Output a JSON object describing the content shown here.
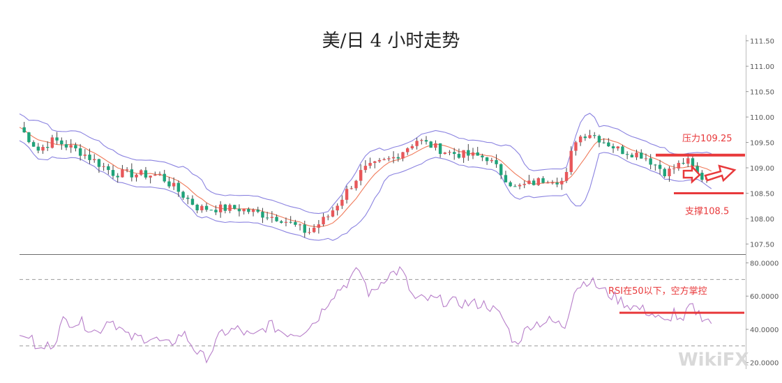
{
  "chart_data": [
    {
      "type": "candlestick",
      "panel": "price",
      "title": "美/日 4 小时走势",
      "y_ticks": [
        "107.50",
        "108.00",
        "108.50",
        "109.00",
        "109.50",
        "110.00",
        "110.50",
        "111.00",
        "111.50"
      ],
      "ylim": [
        107.3,
        111.55
      ],
      "grid": false,
      "colors": {
        "up": "#e8575a",
        "down": "#1fa37a",
        "bollinger": "#8a82e0",
        "mid": "#f07a5a",
        "annotation": "#e8393b"
      },
      "price_path": [
        {
          "x": 0,
          "y": 109.8
        },
        {
          "x": 12,
          "y": 109.35
        },
        {
          "x": 22,
          "y": 109.55
        },
        {
          "x": 40,
          "y": 109.3
        },
        {
          "x": 60,
          "y": 108.9
        },
        {
          "x": 90,
          "y": 108.85
        },
        {
          "x": 115,
          "y": 108.2
        },
        {
          "x": 140,
          "y": 108.2
        },
        {
          "x": 168,
          "y": 108.0
        },
        {
          "x": 185,
          "y": 107.72
        },
        {
          "x": 198,
          "y": 108.05
        },
        {
          "x": 220,
          "y": 108.95
        },
        {
          "x": 240,
          "y": 109.2
        },
        {
          "x": 255,
          "y": 109.55
        },
        {
          "x": 275,
          "y": 109.3
        },
        {
          "x": 300,
          "y": 109.2
        },
        {
          "x": 318,
          "y": 108.6
        },
        {
          "x": 340,
          "y": 108.8
        },
        {
          "x": 350,
          "y": 108.72
        },
        {
          "x": 356,
          "y": 109.55
        },
        {
          "x": 365,
          "y": 109.7
        },
        {
          "x": 385,
          "y": 109.35
        },
        {
          "x": 400,
          "y": 109.25
        },
        {
          "x": 415,
          "y": 108.9
        },
        {
          "x": 428,
          "y": 109.15
        },
        {
          "x": 437,
          "y": 108.8
        },
        {
          "x": 445,
          "y": 108.85
        }
      ],
      "annotations": [
        {
          "text": "压力109.25",
          "level": 109.25
        },
        {
          "text": "支撑108.5",
          "level": 108.5
        }
      ]
    },
    {
      "type": "line",
      "panel": "rsi",
      "y_ticks": [
        "20.0000",
        "40.0000",
        "60.0000",
        "80.0000"
      ],
      "ylim": [
        19,
        84
      ],
      "reference_lines": [
        30,
        70
      ],
      "rsi_path": [
        {
          "x": 0,
          "y": 33
        },
        {
          "x": 5,
          "y": 38
        },
        {
          "x": 12,
          "y": 27
        },
        {
          "x": 22,
          "y": 32
        },
        {
          "x": 28,
          "y": 45
        },
        {
          "x": 40,
          "y": 44
        },
        {
          "x": 50,
          "y": 38
        },
        {
          "x": 58,
          "y": 47
        },
        {
          "x": 70,
          "y": 35
        },
        {
          "x": 85,
          "y": 35
        },
        {
          "x": 95,
          "y": 30
        },
        {
          "x": 105,
          "y": 38
        },
        {
          "x": 115,
          "y": 25
        },
        {
          "x": 120,
          "y": 22
        },
        {
          "x": 130,
          "y": 38
        },
        {
          "x": 140,
          "y": 40
        },
        {
          "x": 150,
          "y": 35
        },
        {
          "x": 160,
          "y": 43
        },
        {
          "x": 170,
          "y": 38
        },
        {
          "x": 180,
          "y": 38
        },
        {
          "x": 190,
          "y": 45
        },
        {
          "x": 200,
          "y": 60
        },
        {
          "x": 210,
          "y": 68
        },
        {
          "x": 218,
          "y": 76
        },
        {
          "x": 225,
          "y": 60
        },
        {
          "x": 235,
          "y": 72
        },
        {
          "x": 245,
          "y": 76
        },
        {
          "x": 253,
          "y": 58
        },
        {
          "x": 265,
          "y": 58
        },
        {
          "x": 280,
          "y": 56
        },
        {
          "x": 300,
          "y": 55
        },
        {
          "x": 310,
          "y": 47
        },
        {
          "x": 318,
          "y": 31
        },
        {
          "x": 328,
          "y": 43
        },
        {
          "x": 340,
          "y": 45
        },
        {
          "x": 350,
          "y": 42
        },
        {
          "x": 356,
          "y": 64
        },
        {
          "x": 365,
          "y": 70
        },
        {
          "x": 375,
          "y": 63
        },
        {
          "x": 390,
          "y": 55
        },
        {
          "x": 405,
          "y": 50
        },
        {
          "x": 415,
          "y": 43
        },
        {
          "x": 420,
          "y": 51
        },
        {
          "x": 425,
          "y": 42
        },
        {
          "x": 430,
          "y": 54
        },
        {
          "x": 438,
          "y": 48
        },
        {
          "x": 445,
          "y": 44
        }
      ],
      "annotations": [
        {
          "text": "RSI在50以下，空方掌控",
          "level": 50
        }
      ]
    }
  ],
  "watermark": "WikiFX"
}
